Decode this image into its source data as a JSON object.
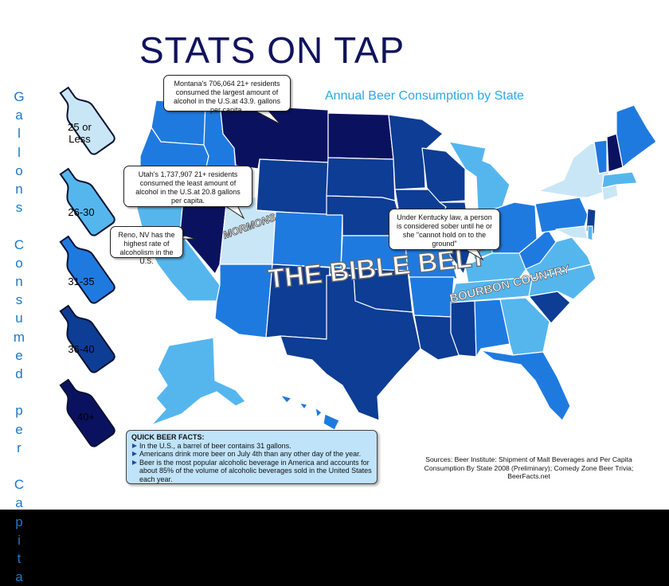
{
  "title": "STATS ON TAP",
  "subtitle": "Annual Beer Consumption by State",
  "legend": {
    "axis_label": "Gallons Consumed per Capita",
    "items": [
      {
        "label_line1": "25 or",
        "label_line2": "Less",
        "color": "#c9e6f7"
      },
      {
        "label_line1": "26-30",
        "label_line2": "",
        "color": "#55b6ee"
      },
      {
        "label_line1": "31-35",
        "label_line2": "",
        "color": "#1f7ae0"
      },
      {
        "label_line1": "36-40",
        "label_line2": "",
        "color": "#0d3d94"
      },
      {
        "label_line1": "40+",
        "label_line2": "",
        "color": "#0a1260"
      }
    ]
  },
  "callouts": {
    "montana": "Montana's 706,064 21+ residents consumed the largest amount of alcohol in the U.S.at 43.9. gallons per capita.",
    "utah": "Utah's 1,737,907 21+ residents consumed the least amount of alcohol in the U.S.at 20.8 gallons per capita.",
    "reno": "Reno, NV has the highest rate of alcoholism in the U.S.",
    "kentucky": "Under Kentucky law, a person is considered sober until he or she \"cannot hold on to the ground\""
  },
  "map_labels": {
    "mormons": "MORMONS",
    "bible_belt": "THE BIBLE BELT",
    "bourbon": "BOURBON COUNTRY"
  },
  "facts": {
    "header": "QUICK BEER FACTS:",
    "items": [
      "In the U.S., a barrel of beer contains 31 gallons.",
      "Americans drink more beer on July 4th than any other day of the year.",
      "Beer is the most popular alcoholic beverage in America and accounts for about 85% of the volume of alcoholic beverages sold in the United States each year."
    ]
  },
  "sources": "Sources: Beer Institute: Shipment of Malt Beverages and Per Capita Consumption By State 2008 (Preliminary); Comedy Zone Beer Trivia; BeerFacts.net",
  "colors": {
    "lvl1": "#c9e6f7",
    "lvl2": "#55b6ee",
    "lvl3": "#1f7ae0",
    "lvl4": "#0d3d94",
    "lvl5": "#0a1260",
    "title": "#10135e",
    "subtitle": "#2ca8e8"
  }
}
